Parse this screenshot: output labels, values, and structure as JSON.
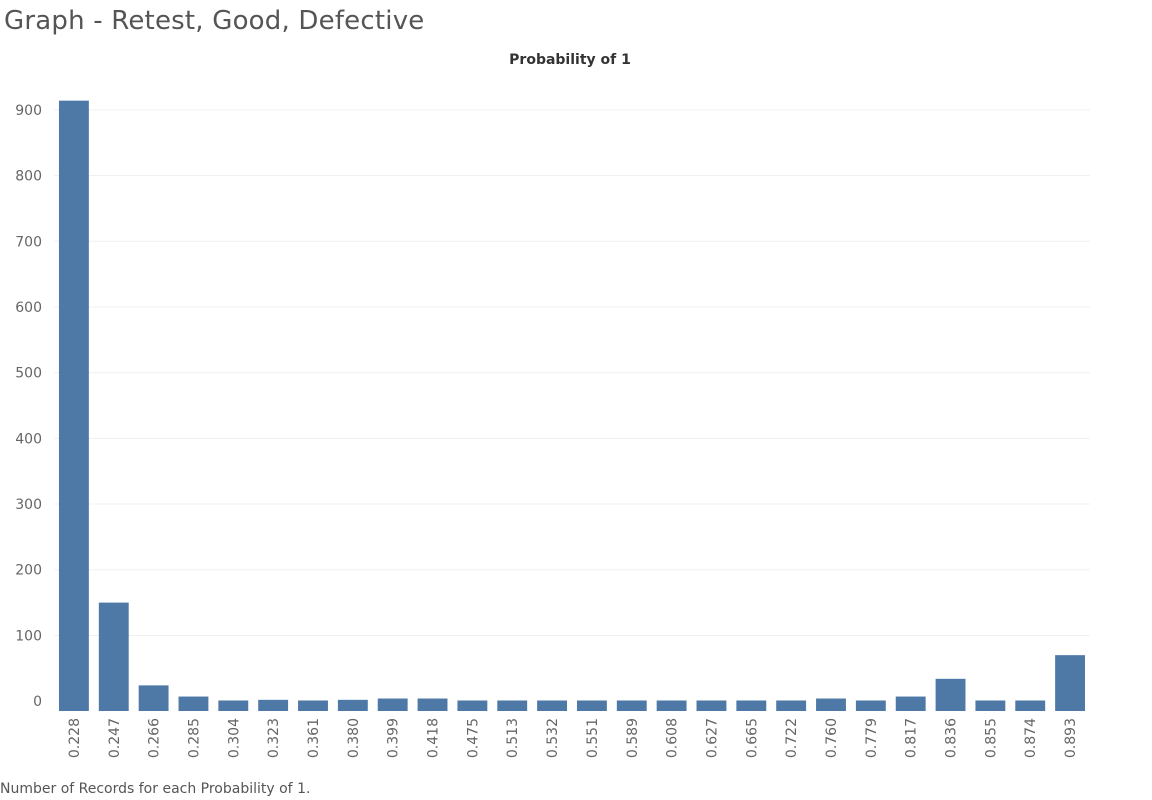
{
  "sheet_title": "Graph - Retest, Good, Defective",
  "footnote": "Number of Records for each Probability of 1.",
  "colors": {
    "bar": "#4e79a7",
    "grid": "#f0f0f0",
    "axis_text": "#666666",
    "title_text": "#555555"
  },
  "chart_data": {
    "type": "bar",
    "title": "Probability of 1",
    "xlabel": "",
    "ylabel": "",
    "ylim": [
      -15,
      915
    ],
    "yticks": [
      0,
      100,
      200,
      300,
      400,
      500,
      600,
      700,
      800,
      900
    ],
    "grid": true,
    "categories": [
      "0.228",
      "0.247",
      "0.266",
      "0.285",
      "0.304",
      "0.323",
      "0.361",
      "0.380",
      "0.399",
      "0.418",
      "0.475",
      "0.513",
      "0.532",
      "0.551",
      "0.589",
      "0.608",
      "0.627",
      "0.665",
      "0.722",
      "0.760",
      "0.779",
      "0.817",
      "0.836",
      "0.855",
      "0.874",
      "0.893"
    ],
    "values": [
      914,
      150,
      24,
      7,
      1,
      2,
      1,
      2,
      4,
      4,
      1,
      1,
      1,
      1,
      1,
      1,
      1,
      1,
      1,
      4,
      1,
      7,
      34,
      1,
      1,
      70
    ]
  }
}
